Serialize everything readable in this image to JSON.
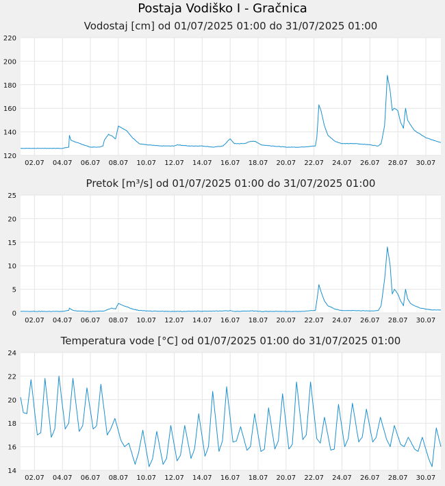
{
  "page": {
    "title": "Postaja Vodiško I - Gračnica"
  },
  "colors": {
    "line": "#1a8fd0",
    "grid": "#e4e4e4",
    "plot_bg": "#ffffff",
    "page_bg": "#f0f0f0"
  },
  "chart_data": [
    {
      "id": "vodostaj",
      "type": "line",
      "title": "Vodostaj [cm] od 01/07/2025 01:00 do 31/07/2025 01:00",
      "ylim": [
        120,
        220
      ],
      "yticks": [
        120,
        140,
        160,
        180,
        200,
        220
      ],
      "xlim": [
        1.0,
        31.08
      ],
      "xticks": [
        2,
        4,
        6,
        8,
        10,
        12,
        14,
        16,
        18,
        20,
        22,
        24,
        26,
        28,
        30
      ],
      "xtick_labels": [
        "02.07",
        "04.07",
        "06.07",
        "08.07",
        "10.07",
        "12.07",
        "14.07",
        "16.07",
        "18.07",
        "20.07",
        "22.07",
        "24.07",
        "26.07",
        "28.07",
        "30.07"
      ],
      "grid": true,
      "series": [
        {
          "x": [
            1.0,
            2.0,
            3.0,
            4.0,
            4.45,
            4.5,
            4.6,
            5.0,
            5.5,
            6.0,
            6.6,
            6.9,
            7.0,
            7.3,
            7.6,
            7.8,
            8.0,
            8.3,
            8.6,
            9.0,
            9.5,
            10.0,
            11.0,
            12.0,
            12.2,
            13.0,
            14.0,
            14.8,
            15.5,
            15.9,
            16.0,
            16.3,
            17.0,
            17.5,
            17.8,
            18.2,
            19.0,
            20.0,
            21.0,
            22.1,
            22.2,
            22.35,
            22.5,
            22.75,
            23.0,
            23.5,
            24.0,
            25.0,
            26.0,
            26.6,
            26.8,
            27.05,
            27.25,
            27.45,
            27.6,
            27.75,
            28.0,
            28.2,
            28.4,
            28.55,
            28.7,
            28.9,
            29.2,
            29.6,
            30.0,
            30.5,
            31.08
          ],
          "y": [
            126,
            126,
            126,
            126,
            127,
            137,
            133,
            131,
            129,
            127,
            127,
            128,
            133,
            138,
            136,
            134,
            145,
            143,
            141,
            135,
            130,
            129,
            128,
            128,
            129,
            128,
            128,
            127,
            128,
            133,
            134,
            130,
            130,
            132,
            132,
            129,
            128,
            127,
            127,
            128,
            135,
            163,
            158,
            145,
            137,
            132,
            130,
            130,
            129,
            128,
            130,
            145,
            188,
            175,
            158,
            160,
            158,
            148,
            143,
            160,
            150,
            146,
            141,
            138,
            135,
            133,
            131
          ]
        }
      ]
    },
    {
      "id": "pretok",
      "type": "line",
      "title": "Pretok [m³/s] od 01/07/2025 01:00 do 31/07/2025 01:00",
      "ylim": [
        0,
        25
      ],
      "yticks": [
        0,
        5,
        10,
        15,
        20,
        25
      ],
      "xlim": [
        1.0,
        31.08
      ],
      "xticks": [
        2,
        4,
        6,
        8,
        10,
        12,
        14,
        16,
        18,
        20,
        22,
        24,
        26,
        28,
        30
      ],
      "xtick_labels": [
        "02.07",
        "04.07",
        "06.07",
        "08.07",
        "10.07",
        "12.07",
        "14.07",
        "16.07",
        "18.07",
        "20.07",
        "22.07",
        "24.07",
        "26.07",
        "28.07",
        "30.07"
      ],
      "grid": true,
      "series": [
        {
          "x": [
            1.0,
            4.0,
            4.45,
            4.5,
            4.7,
            5.0,
            6.0,
            7.0,
            7.5,
            7.8,
            8.0,
            8.3,
            8.6,
            9.0,
            9.5,
            10.0,
            12.0,
            15.9,
            16.0,
            16.3,
            17.5,
            17.8,
            18.2,
            21.0,
            22.1,
            22.2,
            22.35,
            22.5,
            22.75,
            23.0,
            23.5,
            24.0,
            26.0,
            26.6,
            26.8,
            27.05,
            27.25,
            27.45,
            27.6,
            27.75,
            28.0,
            28.2,
            28.4,
            28.55,
            28.7,
            28.9,
            29.2,
            29.6,
            30.0,
            30.5,
            31.08
          ],
          "y": [
            0.3,
            0.3,
            0.5,
            1.0,
            0.6,
            0.4,
            0.3,
            0.4,
            1.0,
            0.8,
            2.0,
            1.6,
            1.3,
            0.8,
            0.5,
            0.4,
            0.3,
            0.4,
            0.5,
            0.3,
            0.4,
            0.4,
            0.3,
            0.3,
            0.5,
            2.5,
            6.0,
            4.5,
            2.5,
            1.5,
            0.8,
            0.5,
            0.4,
            0.5,
            1.5,
            7.0,
            14.0,
            10.0,
            4.0,
            5.0,
            4.0,
            2.5,
            1.5,
            5.0,
            3.0,
            2.0,
            1.5,
            1.0,
            0.8,
            0.6,
            0.6
          ]
        }
      ]
    },
    {
      "id": "temperatura",
      "type": "line",
      "title": "Temperatura vode [°C] od 01/07/2025 01:00 do 31/07/2025 01:00",
      "ylim": [
        14,
        24
      ],
      "yticks": [
        14,
        16,
        18,
        20,
        22,
        24
      ],
      "xlim": [
        1.0,
        31.08
      ],
      "xticks": [
        2,
        4,
        6,
        8,
        10,
        12,
        14,
        16,
        18,
        20,
        22,
        24,
        26,
        28,
        30
      ],
      "xtick_labels": [
        "02.07",
        "04.07",
        "06.07",
        "08.07",
        "10.07",
        "12.07",
        "14.07",
        "16.07",
        "18.07",
        "20.07",
        "22.07",
        "24.07",
        "26.07",
        "28.07",
        "30.07"
      ],
      "grid": true,
      "series": [
        {
          "x": [
            1.0,
            1.2,
            1.45,
            1.75,
            2.2,
            2.45,
            2.75,
            3.2,
            3.45,
            3.75,
            4.2,
            4.45,
            4.75,
            5.2,
            5.45,
            5.75,
            6.2,
            6.45,
            6.75,
            7.2,
            7.45,
            7.75,
            8.2,
            8.45,
            8.75,
            9.2,
            9.45,
            9.75,
            10.2,
            10.45,
            10.75,
            11.2,
            11.45,
            11.75,
            12.2,
            12.45,
            12.75,
            13.2,
            13.45,
            13.75,
            14.2,
            14.45,
            14.75,
            15.2,
            15.45,
            15.75,
            16.2,
            16.45,
            16.75,
            17.2,
            17.45,
            17.75,
            18.2,
            18.45,
            18.75,
            19.2,
            19.45,
            19.75,
            20.2,
            20.45,
            20.75,
            21.2,
            21.45,
            21.75,
            22.2,
            22.45,
            22.75,
            23.2,
            23.45,
            23.75,
            24.2,
            24.45,
            24.75,
            25.2,
            25.45,
            25.75,
            26.2,
            26.45,
            26.75,
            27.2,
            27.45,
            27.75,
            28.2,
            28.45,
            28.75,
            29.2,
            29.45,
            29.75,
            30.2,
            30.45,
            30.75,
            31.08
          ],
          "y": [
            20.2,
            18.9,
            18.8,
            21.7,
            17.0,
            17.2,
            21.8,
            16.8,
            17.5,
            22.0,
            17.5,
            18.0,
            21.8,
            17.3,
            17.8,
            21.0,
            17.5,
            17.8,
            21.3,
            17.0,
            17.5,
            18.4,
            16.5,
            16.0,
            16.3,
            14.5,
            15.5,
            17.4,
            14.3,
            15.0,
            17.3,
            14.5,
            15.0,
            17.8,
            14.8,
            15.3,
            17.8,
            15.0,
            15.8,
            18.8,
            15.2,
            16.0,
            20.7,
            15.6,
            16.5,
            21.1,
            16.4,
            16.5,
            17.7,
            15.7,
            16.0,
            18.8,
            15.6,
            15.8,
            19.3,
            15.8,
            16.5,
            20.5,
            15.8,
            16.2,
            21.5,
            16.6,
            17.0,
            21.5,
            16.7,
            16.3,
            18.5,
            15.7,
            15.8,
            19.6,
            16.0,
            16.7,
            19.7,
            16.4,
            16.8,
            19.2,
            16.4,
            16.8,
            18.5,
            16.6,
            16.0,
            17.8,
            16.2,
            16.0,
            16.8,
            15.8,
            15.6,
            16.8,
            15.0,
            14.3,
            17.6,
            16.0
          ]
        }
      ]
    }
  ]
}
